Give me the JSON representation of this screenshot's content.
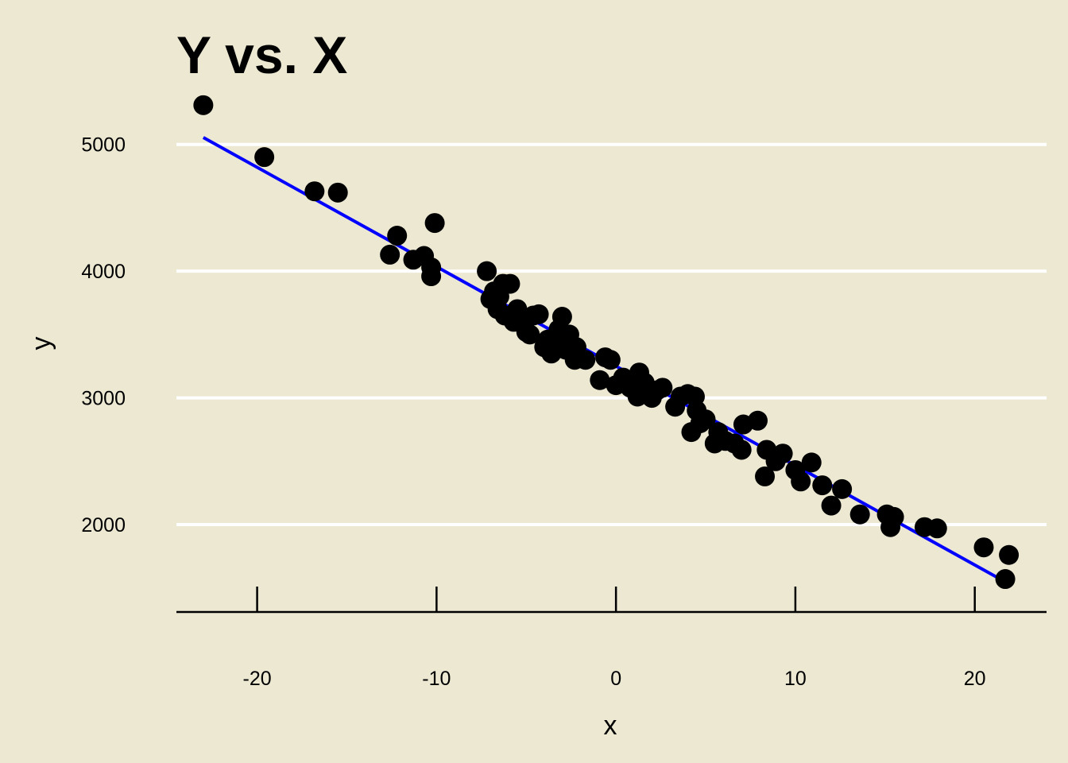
{
  "chart_data": {
    "type": "scatter",
    "title": "Y vs. X",
    "xlabel": "x",
    "ylabel": "y",
    "xlim": [
      -24.5,
      24.0
    ],
    "ylim": [
      1310,
      5450
    ],
    "x_ticks": [
      -20,
      -10,
      0,
      10,
      20
    ],
    "x_tick_labels": [
      "-20",
      "-10",
      "0",
      "10",
      "20"
    ],
    "y_ticks": [
      2000,
      3000,
      4000,
      5000
    ],
    "y_tick_labels": [
      "2000",
      "3000",
      "4000",
      "5000"
    ],
    "grid": "horizontal",
    "colors": {
      "background": "#ECE8D2",
      "points": "#000000",
      "fit_line": "#0000FF",
      "grid": "#FFFFFF"
    },
    "fit_line": {
      "x": [
        -23.0,
        21.8
      ],
      "y": [
        5055,
        1540
      ]
    },
    "points": {
      "x": [
        -23.0,
        -19.6,
        -16.8,
        -15.5,
        -12.6,
        -12.2,
        -11.3,
        -10.7,
        -10.3,
        -10.3,
        -10.1,
        -7.2,
        -7.0,
        -6.8,
        -6.6,
        -6.5,
        -6.3,
        -6.2,
        -5.9,
        -5.7,
        -5.5,
        -5.2,
        -5.0,
        -4.8,
        -4.6,
        -4.3,
        -4.0,
        -3.8,
        -3.6,
        -3.4,
        -3.2,
        -3.1,
        -3.0,
        -2.8,
        -2.6,
        -2.3,
        -2.2,
        -1.7,
        -0.9,
        -0.6,
        -0.3,
        0.0,
        0.4,
        0.8,
        1.2,
        1.3,
        1.6,
        2.0,
        2.3,
        2.6,
        3.3,
        3.6,
        4.0,
        4.4,
        4.2,
        4.7,
        4.5,
        5.0,
        5.5,
        5.7,
        6.1,
        6.6,
        7.0,
        7.1,
        7.9,
        8.3,
        8.4,
        8.9,
        9.3,
        10.0,
        10.3,
        10.9,
        11.5,
        12.0,
        12.6,
        13.6,
        15.1,
        15.3,
        15.5,
        17.2,
        17.9,
        20.5,
        21.7,
        21.9
      ],
      "y": [
        5310,
        4900,
        4630,
        4620,
        4130,
        4280,
        4090,
        4120,
        4030,
        3960,
        4380,
        4000,
        3780,
        3840,
        3700,
        3800,
        3900,
        3650,
        3900,
        3600,
        3700,
        3620,
        3520,
        3500,
        3650,
        3660,
        3400,
        3460,
        3350,
        3420,
        3540,
        3480,
        3640,
        3380,
        3500,
        3300,
        3400,
        3300,
        3140,
        3320,
        3300,
        3100,
        3160,
        3080,
        3010,
        3200,
        3120,
        3000,
        3060,
        3080,
        2930,
        3010,
        3030,
        3010,
        2730,
        2800,
        2900,
        2830,
        2640,
        2730,
        2660,
        2640,
        2590,
        2790,
        2820,
        2380,
        2590,
        2500,
        2560,
        2430,
        2340,
        2490,
        2310,
        2150,
        2280,
        2080,
        2080,
        1980,
        2060,
        1980,
        1970,
        1820,
        1570,
        1760
      ]
    }
  }
}
